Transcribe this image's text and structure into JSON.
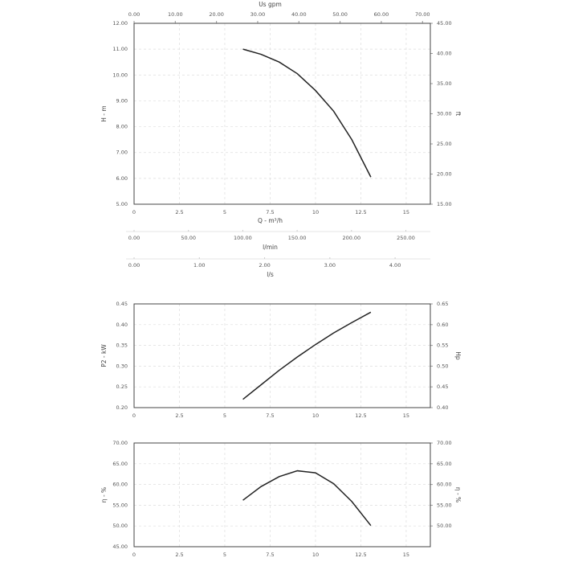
{
  "chart_data": [
    {
      "type": "line",
      "x_label": "Q - m³/h",
      "y_label": "H - m",
      "y2_label": "ft",
      "x2_label": "Us gpm",
      "grid": true,
      "xlim": [
        0,
        16.33
      ],
      "xticks": [
        0,
        2.5,
        5,
        7.5,
        10,
        12.5,
        15
      ],
      "ylim": [
        5,
        12
      ],
      "yticks": [
        {
          "value": 5,
          "label": "5.00"
        },
        {
          "value": 6,
          "label": "6.00"
        },
        {
          "value": 7,
          "label": "7.00"
        },
        {
          "value": 8,
          "label": "8.00"
        },
        {
          "value": 9,
          "label": "9.00"
        },
        {
          "value": 10,
          "label": "10.00"
        },
        {
          "value": 11,
          "label": "11.00"
        },
        {
          "value": 12,
          "label": "12.00"
        }
      ],
      "y2lim": [
        15,
        45
      ],
      "y2ticks": [
        {
          "value": 15,
          "label": "15.00"
        },
        {
          "value": 20,
          "label": "20.00"
        },
        {
          "value": 25,
          "label": "25.00"
        },
        {
          "value": 30,
          "label": "30.00"
        },
        {
          "value": 35,
          "label": "35.00"
        },
        {
          "value": 40,
          "label": "40.00"
        },
        {
          "value": 45,
          "label": "45.00"
        }
      ],
      "x2lim": [
        0,
        71.9
      ],
      "x2ticks": [
        {
          "value": 0,
          "label": "0.00"
        },
        {
          "value": 10,
          "label": "10.00"
        },
        {
          "value": 20,
          "label": "20.00"
        },
        {
          "value": 30,
          "label": "30.00"
        },
        {
          "value": 40,
          "label": "40.00"
        },
        {
          "value": 50,
          "label": "50.00"
        },
        {
          "value": 60,
          "label": "60.00"
        },
        {
          "value": 70,
          "label": "70.00"
        }
      ],
      "sub_axes": [
        {
          "label": "l/min",
          "xlim": [
            0,
            272.5
          ],
          "xticks": [
            {
              "value": 0,
              "label": "0.00"
            },
            {
              "value": 50,
              "label": "50.00"
            },
            {
              "value": 100,
              "label": "100.00"
            },
            {
              "value": 150,
              "label": "150.00"
            },
            {
              "value": 200,
              "label": "200.00"
            },
            {
              "value": 250,
              "label": "250.00"
            }
          ]
        },
        {
          "label": "l/s",
          "xlim": [
            0,
            4.54
          ],
          "xticks": [
            {
              "value": 0,
              "label": "0.00"
            },
            {
              "value": 1,
              "label": "1.00"
            },
            {
              "value": 2,
              "label": "2.00"
            },
            {
              "value": 3,
              "label": "3.00"
            },
            {
              "value": 4,
              "label": "4.00"
            }
          ]
        }
      ],
      "x": [
        6,
        7,
        8,
        9,
        10,
        11,
        12,
        13.05
      ],
      "series": [
        {
          "color": "#222222",
          "values": [
            11.0,
            10.8,
            10.5,
            10.05,
            9.4,
            8.6,
            7.5,
            6.05
          ]
        }
      ]
    },
    {
      "type": "line",
      "y_label": "P2 - kW",
      "y2_label": "Hp",
      "grid": true,
      "xlim": [
        0,
        16.33
      ],
      "xticks": [
        0,
        2.5,
        5,
        7.5,
        10,
        12.5,
        15
      ],
      "ylim": [
        0.2,
        0.45
      ],
      "yticks": [
        {
          "value": 0.2,
          "label": "0.20"
        },
        {
          "value": 0.25,
          "label": "0.25"
        },
        {
          "value": 0.3,
          "label": "0.30"
        },
        {
          "value": 0.35,
          "label": "0.35"
        },
        {
          "value": 0.4,
          "label": "0.40"
        },
        {
          "value": 0.45,
          "label": "0.45"
        }
      ],
      "y2lim": [
        0.4,
        0.65
      ],
      "y2ticks": [
        {
          "value": 0.4,
          "label": "0.40"
        },
        {
          "value": 0.45,
          "label": "0.45"
        },
        {
          "value": 0.5,
          "label": "0.50"
        },
        {
          "value": 0.55,
          "label": "0.55"
        },
        {
          "value": 0.6,
          "label": "0.60"
        },
        {
          "value": 0.65,
          "label": "0.65"
        }
      ],
      "x": [
        6,
        7,
        8,
        9,
        10,
        11,
        12,
        13.05
      ],
      "series": [
        {
          "color": "#222222",
          "values": [
            0.22,
            0.255,
            0.29,
            0.322,
            0.352,
            0.38,
            0.405,
            0.43
          ]
        }
      ]
    },
    {
      "type": "line",
      "y_label": "η - %",
      "y2_label": "η - %",
      "grid": true,
      "xlim": [
        0,
        16.33
      ],
      "xticks": [
        0,
        2.5,
        5,
        7.5,
        10,
        12.5,
        15
      ],
      "ylim": [
        45,
        70
      ],
      "yticks": [
        {
          "value": 45,
          "label": "45.00"
        },
        {
          "value": 50,
          "label": "50.00"
        },
        {
          "value": 55,
          "label": "55.00"
        },
        {
          "value": 60,
          "label": "60.00"
        },
        {
          "value": 65,
          "label": "65.00"
        },
        {
          "value": 70,
          "label": "70.00"
        }
      ],
      "y2lim": [
        45,
        70
      ],
      "y2ticks": [
        {
          "value": 50,
          "label": "50.00"
        },
        {
          "value": 55,
          "label": "55.00"
        },
        {
          "value": 60,
          "label": "60.00"
        },
        {
          "value": 65,
          "label": "65.00"
        },
        {
          "value": 70,
          "label": "70.00"
        }
      ],
      "x": [
        6,
        7,
        8,
        9,
        10,
        11,
        12,
        13.05
      ],
      "series": [
        {
          "color": "#222222",
          "values": [
            56.2,
            59.5,
            61.9,
            63.3,
            62.8,
            60.2,
            55.9,
            50.1
          ]
        }
      ]
    }
  ]
}
